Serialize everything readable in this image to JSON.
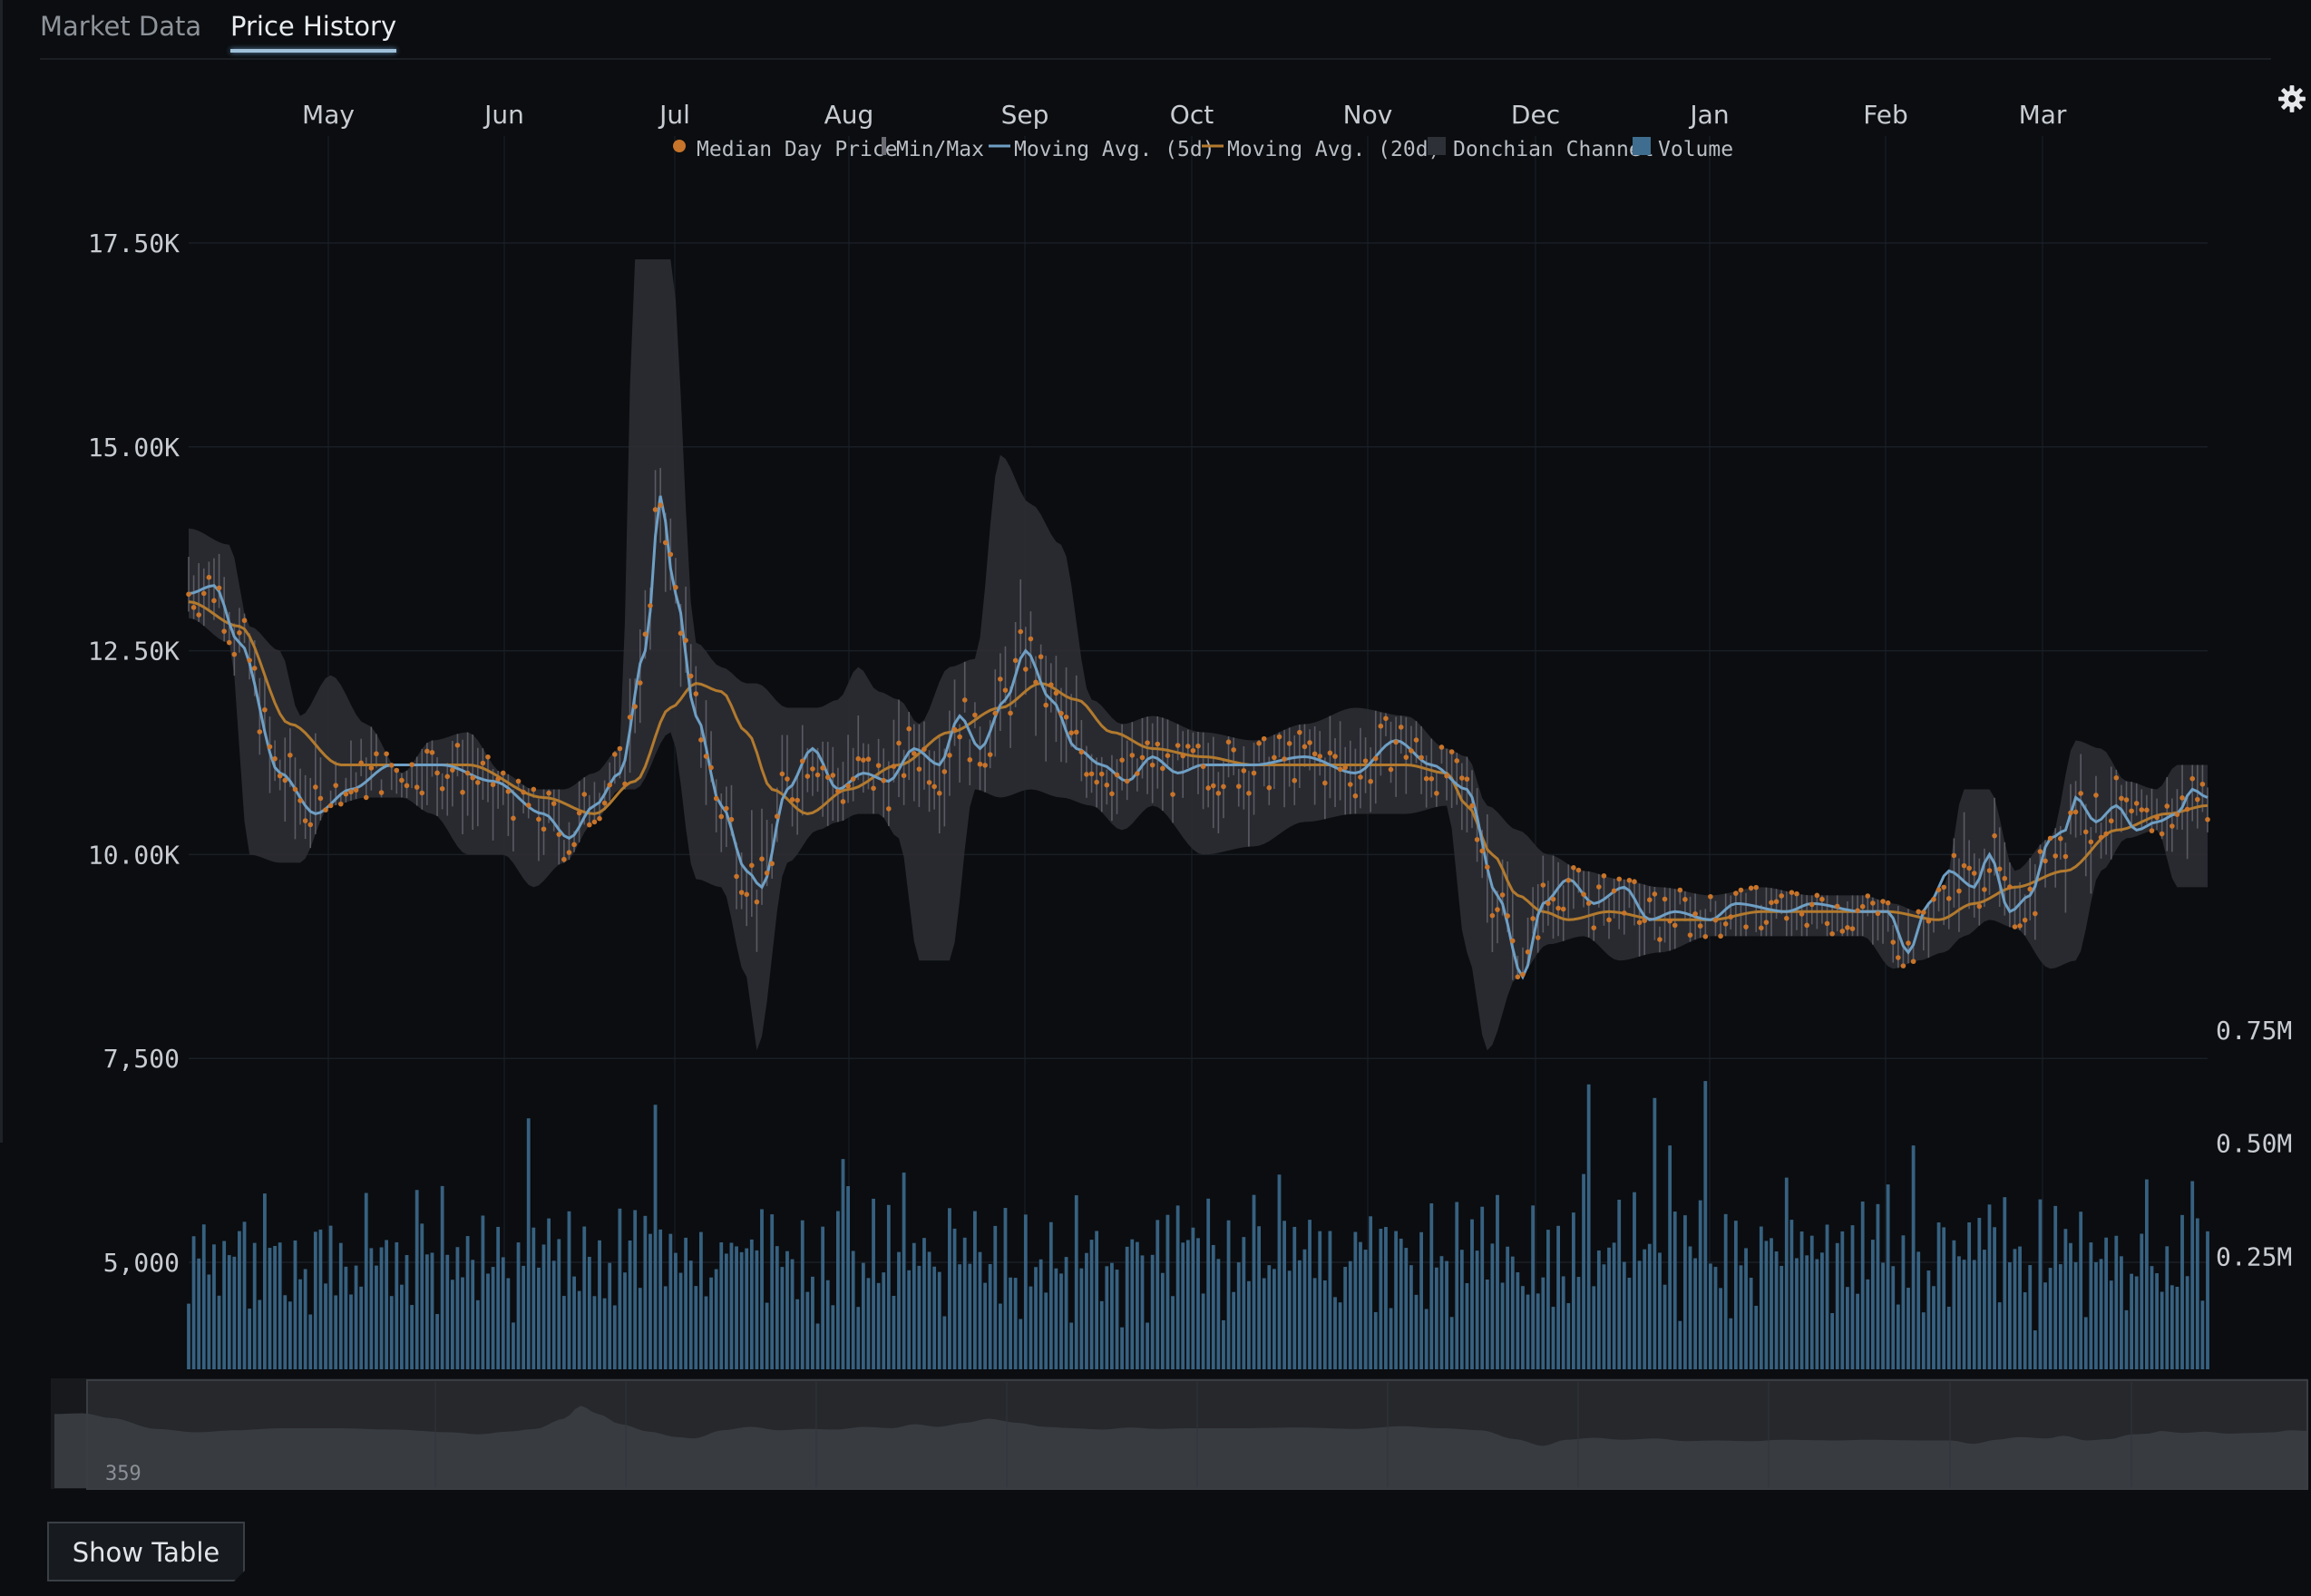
{
  "tabs": [
    {
      "label": "Market Data",
      "active": false
    },
    {
      "label": "Price History",
      "active": true
    }
  ],
  "settings_icon": "gear-icon",
  "show_table_label": "Show Table",
  "navigator": {
    "label": "359"
  },
  "colors": {
    "background": "#0b0d10",
    "median": "#c8742a",
    "ma5": "#6f9fc4",
    "ma20": "#b27a2e",
    "donchian": "#2c2c33",
    "minmax": "#6b6b74",
    "volume": "#3e6d8f"
  },
  "chart_data": {
    "type": "line",
    "months": [
      "May",
      "Jun",
      "Jul",
      "Aug",
      "Sep",
      "Oct",
      "Nov",
      "Dec",
      "Jan",
      "Feb",
      "Mar"
    ],
    "legend": [
      {
        "name": "Median Day Price",
        "marker": "dot"
      },
      {
        "name": "Min/Max",
        "marker": "bar"
      },
      {
        "name": "Moving Avg.  (5d)",
        "marker": "line"
      },
      {
        "name": "Moving Avg.  (20d)",
        "marker": "line"
      },
      {
        "name": "Donchian Channel",
        "marker": "box"
      },
      {
        "name": "Volume",
        "marker": "box"
      }
    ],
    "legend_position": "top-center",
    "price_axis": {
      "tick_labels": [
        "17.50K",
        "15.00K",
        "12.50K",
        "10.00K",
        "7,500",
        "5,000"
      ],
      "tick_values": [
        17500,
        15000,
        12500,
        10000,
        7500,
        5000
      ],
      "range": [
        3600,
        18700
      ]
    },
    "volume_axis": {
      "tick_labels": [
        "0.75M",
        "0.50M",
        "0.25M"
      ],
      "tick_values": [
        750000,
        500000,
        250000
      ],
      "range": [
        0,
        750000
      ]
    },
    "grid": true,
    "days": 359,
    "ma5_anchors": [
      [
        0,
        13200
      ],
      [
        5,
        13300
      ],
      [
        10,
        12600
      ],
      [
        18,
        11000
      ],
      [
        25,
        10500
      ],
      [
        32,
        10800
      ],
      [
        40,
        11100
      ],
      [
        50,
        11100
      ],
      [
        60,
        10900
      ],
      [
        70,
        10500
      ],
      [
        75,
        10200
      ],
      [
        80,
        10600
      ],
      [
        85,
        11000
      ],
      [
        90,
        12500
      ],
      [
        93,
        14400
      ],
      [
        96,
        13200
      ],
      [
        100,
        11700
      ],
      [
        105,
        10600
      ],
      [
        110,
        9800
      ],
      [
        113,
        9600
      ],
      [
        118,
        10800
      ],
      [
        123,
        11300
      ],
      [
        128,
        10800
      ],
      [
        133,
        11000
      ],
      [
        138,
        10900
      ],
      [
        143,
        11300
      ],
      [
        148,
        11100
      ],
      [
        152,
        11700
      ],
      [
        156,
        11300
      ],
      [
        161,
        11900
      ],
      [
        165,
        12500
      ],
      [
        170,
        11900
      ],
      [
        175,
        11300
      ],
      [
        180,
        11100
      ],
      [
        185,
        10900
      ],
      [
        190,
        11200
      ],
      [
        195,
        11000
      ],
      [
        200,
        11100
      ],
      [
        210,
        11100
      ],
      [
        220,
        11200
      ],
      [
        230,
        11000
      ],
      [
        238,
        11400
      ],
      [
        245,
        11100
      ],
      [
        252,
        10800
      ],
      [
        258,
        9500
      ],
      [
        263,
        8500
      ],
      [
        267,
        9400
      ],
      [
        272,
        9700
      ],
      [
        277,
        9400
      ],
      [
        283,
        9600
      ],
      [
        288,
        9200
      ],
      [
        293,
        9300
      ],
      [
        300,
        9200
      ],
      [
        305,
        9400
      ],
      [
        315,
        9300
      ],
      [
        320,
        9400
      ],
      [
        330,
        9300
      ],
      [
        335,
        9300
      ],
      [
        339,
        8800
      ],
      [
        343,
        9400
      ],
      [
        347,
        9800
      ],
      [
        352,
        9600
      ],
      [
        355,
        10000
      ],
      [
        359,
        9300
      ],
      [
        363,
        9500
      ],
      [
        367,
        10200
      ],
      [
        370,
        10300
      ],
      [
        372,
        10700
      ],
      [
        376,
        10400
      ],
      [
        380,
        10600
      ],
      [
        384,
        10300
      ],
      [
        388,
        10400
      ],
      [
        392,
        10500
      ],
      [
        395,
        10800
      ],
      [
        398,
        10700
      ]
    ],
    "ma20_anchors": [
      [
        0,
        13100
      ],
      [
        10,
        12800
      ],
      [
        20,
        11600
      ],
      [
        30,
        11100
      ],
      [
        40,
        11100
      ],
      [
        55,
        11100
      ],
      [
        70,
        10700
      ],
      [
        80,
        10500
      ],
      [
        88,
        10900
      ],
      [
        95,
        11800
      ],
      [
        100,
        12100
      ],
      [
        105,
        12000
      ],
      [
        110,
        11500
      ],
      [
        115,
        10800
      ],
      [
        122,
        10500
      ],
      [
        130,
        10800
      ],
      [
        140,
        11100
      ],
      [
        150,
        11500
      ],
      [
        160,
        11800
      ],
      [
        168,
        12100
      ],
      [
        175,
        11900
      ],
      [
        182,
        11500
      ],
      [
        190,
        11300
      ],
      [
        200,
        11200
      ],
      [
        210,
        11100
      ],
      [
        225,
        11100
      ],
      [
        240,
        11100
      ],
      [
        248,
        11000
      ],
      [
        252,
        10600
      ],
      [
        257,
        10000
      ],
      [
        262,
        9500
      ],
      [
        267,
        9300
      ],
      [
        272,
        9200
      ],
      [
        280,
        9300
      ],
      [
        290,
        9200
      ],
      [
        300,
        9200
      ],
      [
        310,
        9300
      ],
      [
        320,
        9300
      ],
      [
        335,
        9300
      ],
      [
        345,
        9200
      ],
      [
        352,
        9400
      ],
      [
        360,
        9600
      ],
      [
        370,
        9800
      ],
      [
        380,
        10300
      ],
      [
        390,
        10500
      ],
      [
        398,
        10600
      ]
    ],
    "donchian_anchors": [
      [
        0,
        14000,
        12900
      ],
      [
        8,
        13800,
        12600
      ],
      [
        12,
        12800,
        10000
      ],
      [
        18,
        12500,
        9900
      ],
      [
        22,
        11700,
        9900
      ],
      [
        28,
        12200,
        10600
      ],
      [
        35,
        11600,
        10700
      ],
      [
        42,
        11000,
        10700
      ],
      [
        48,
        11400,
        10500
      ],
      [
        55,
        11500,
        10000
      ],
      [
        62,
        11000,
        10000
      ],
      [
        68,
        10800,
        9600
      ],
      [
        74,
        10800,
        9900
      ],
      [
        80,
        11000,
        10400
      ],
      [
        85,
        11300,
        10800
      ],
      [
        88,
        17300,
        10800
      ],
      [
        95,
        17300,
        11500
      ],
      [
        100,
        12600,
        9700
      ],
      [
        105,
        12300,
        9600
      ],
      [
        110,
        12100,
        8500
      ],
      [
        112,
        12100,
        7600
      ],
      [
        118,
        11800,
        9900
      ],
      [
        124,
        11800,
        10300
      ],
      [
        128,
        11900,
        10400
      ],
      [
        132,
        12300,
        10500
      ],
      [
        136,
        12000,
        10500
      ],
      [
        140,
        11900,
        10200
      ],
      [
        144,
        11600,
        8700
      ],
      [
        150,
        12300,
        8700
      ],
      [
        155,
        12400,
        10800
      ],
      [
        160,
        14900,
        10700
      ],
      [
        166,
        14300,
        10800
      ],
      [
        172,
        13800,
        10700
      ],
      [
        178,
        11900,
        10600
      ],
      [
        184,
        11600,
        10300
      ],
      [
        190,
        11700,
        10600
      ],
      [
        200,
        11500,
        10000
      ],
      [
        210,
        11400,
        10100
      ],
      [
        220,
        11600,
        10400
      ],
      [
        230,
        11800,
        10500
      ],
      [
        240,
        11700,
        10500
      ],
      [
        248,
        11300,
        10600
      ],
      [
        252,
        11200,
        8800
      ],
      [
        256,
        10600,
        7600
      ],
      [
        262,
        10300,
        8500
      ],
      [
        268,
        10000,
        8900
      ],
      [
        275,
        9800,
        9000
      ],
      [
        282,
        9700,
        8700
      ],
      [
        290,
        9600,
        8800
      ],
      [
        300,
        9500,
        9000
      ],
      [
        310,
        9600,
        9000
      ],
      [
        320,
        9500,
        9000
      ],
      [
        330,
        9500,
        9000
      ],
      [
        336,
        9400,
        8600
      ],
      [
        341,
        9300,
        8700
      ],
      [
        346,
        9600,
        8800
      ],
      [
        350,
        10800,
        9000
      ],
      [
        355,
        10800,
        9200
      ],
      [
        360,
        9800,
        9100
      ],
      [
        367,
        10200,
        8600
      ],
      [
        372,
        11400,
        8700
      ],
      [
        377,
        11300,
        9800
      ],
      [
        382,
        10900,
        10200
      ],
      [
        388,
        10800,
        10300
      ],
      [
        392,
        11100,
        9600
      ],
      [
        398,
        11100,
        9600
      ]
    ],
    "volume_pattern": [
      0.22,
      0.35,
      0.18,
      0.28,
      0.12,
      0.41,
      0.25,
      0.19,
      0.31,
      0.15,
      0.38,
      0.27,
      0.21,
      0.33,
      0.16,
      0.44,
      0.29,
      0.2,
      0.36,
      0.24
    ],
    "volume_spikes": [
      [
        67,
        0.74
      ],
      [
        92,
        0.78
      ],
      [
        129,
        0.62
      ],
      [
        141,
        0.58
      ],
      [
        276,
        0.84
      ],
      [
        282,
        0.5
      ],
      [
        289,
        0.8
      ],
      [
        292,
        0.66
      ],
      [
        299,
        0.85
      ],
      [
        340,
        0.66
      ],
      [
        386,
        0.56
      ]
    ]
  }
}
